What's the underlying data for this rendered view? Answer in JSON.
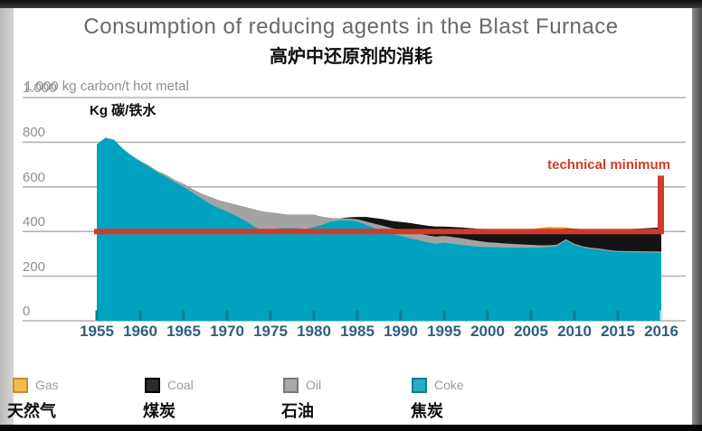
{
  "chart_data": {
    "type": "area",
    "title": "Consumption of reducing agents in the Blast Furnace",
    "subtitle_zh": "高炉中还原剂的消耗",
    "y_unit_en": "1.000 kg carbon/t hot metal",
    "y_unit_zh": "Kg 碳/铁水",
    "ylim": [
      0,
      1000
    ],
    "grid": true,
    "y_ticks": [
      1000,
      800,
      600,
      400,
      200,
      0
    ],
    "y_tick_labels": [
      "1.000",
      "800",
      "600",
      "400",
      "200",
      "0"
    ],
    "x_tick_years": [
      1955,
      1960,
      1965,
      1970,
      1975,
      1980,
      1985,
      1990,
      1995,
      2000,
      2005,
      2010,
      2015,
      2016
    ],
    "x_tick_labels": [
      "1955",
      "1960",
      "1965",
      "1970",
      "1975",
      "1980",
      "1985",
      "1990",
      "1995",
      "2000",
      "2005",
      "2010",
      "2015",
      "2016"
    ],
    "years": [
      1955,
      1956,
      1957,
      1958,
      1959,
      1960,
      1961,
      1962,
      1963,
      1964,
      1965,
      1966,
      1967,
      1968,
      1969,
      1970,
      1971,
      1972,
      1973,
      1974,
      1975,
      1976,
      1977,
      1978,
      1979,
      1980,
      1981,
      1982,
      1983,
      1984,
      1985,
      1986,
      1987,
      1988,
      1989,
      1990,
      1991,
      1992,
      1993,
      1994,
      1995,
      1996,
      1997,
      1998,
      1999,
      2000,
      2001,
      2002,
      2003,
      2004,
      2005,
      2006,
      2007,
      2008,
      2009,
      2010,
      2011,
      2012,
      2013,
      2014,
      2015,
      2016
    ],
    "series": [
      {
        "key": "coke",
        "name": "Coke",
        "name_zh": "焦炭",
        "color": "#00a3bf",
        "values": [
          790,
          820,
          810,
          770,
          740,
          715,
          690,
          665,
          645,
          620,
          600,
          575,
          550,
          525,
          505,
          490,
          470,
          450,
          425,
          405,
          405,
          415,
          415,
          415,
          410,
          420,
          430,
          445,
          450,
          450,
          445,
          430,
          415,
          400,
          390,
          380,
          370,
          362,
          352,
          345,
          350,
          345,
          340,
          335,
          332,
          330,
          330,
          328,
          328,
          328,
          328,
          328,
          330,
          335,
          360,
          340,
          328,
          322,
          318,
          312,
          308,
          305
        ]
      },
      {
        "key": "oil",
        "name": "Oil",
        "name_zh": "石油",
        "color": "#a3a3a3",
        "values": [
          0,
          0,
          0,
          0,
          0,
          0,
          5,
          5,
          8,
          10,
          12,
          15,
          20,
          30,
          35,
          40,
          50,
          60,
          75,
          85,
          80,
          65,
          60,
          60,
          65,
          55,
          35,
          15,
          8,
          8,
          10,
          15,
          20,
          25,
          25,
          28,
          30,
          30,
          32,
          32,
          30,
          30,
          30,
          28,
          25,
          22,
          20,
          18,
          16,
          14,
          12,
          10,
          8,
          6,
          5,
          5,
          5,
          5,
          5,
          5,
          5,
          5
        ]
      },
      {
        "key": "coal",
        "name": "Coal",
        "name_zh": "煤炭",
        "color": "#141414",
        "values": [
          0,
          0,
          0,
          0,
          0,
          0,
          0,
          0,
          0,
          0,
          0,
          0,
          0,
          0,
          0,
          0,
          0,
          0,
          0,
          0,
          0,
          0,
          0,
          0,
          0,
          0,
          0,
          0,
          0,
          5,
          10,
          20,
          25,
          30,
          32,
          35,
          38,
          40,
          42,
          45,
          42,
          45,
          48,
          52,
          55,
          58,
          60,
          64,
          66,
          68,
          70,
          70,
          68,
          66,
          48,
          68,
          76,
          82,
          86,
          90,
          95,
          108
        ]
      },
      {
        "key": "gas",
        "name": "Gas",
        "name_zh": "天然气",
        "color": "#ef9b20",
        "values": [
          0,
          0,
          0,
          0,
          0,
          0,
          0,
          0,
          0,
          0,
          0,
          0,
          0,
          0,
          0,
          0,
          0,
          0,
          0,
          0,
          0,
          0,
          0,
          0,
          0,
          0,
          0,
          0,
          0,
          0,
          0,
          0,
          0,
          0,
          0,
          0,
          0,
          0,
          0,
          0,
          0,
          0,
          0,
          0,
          0,
          0,
          0,
          0,
          0,
          0,
          0,
          8,
          14,
          12,
          6,
          0,
          0,
          0,
          0,
          0,
          0,
          0
        ]
      }
    ],
    "technical_minimum": 400,
    "technical_minimum_label": "technical minimum",
    "technical_minimum_color": "#cf3b28",
    "spike": {
      "year": 2016,
      "top": 650
    },
    "legend": [
      {
        "label": "Gas",
        "label_zh": "天然气",
        "fill": "#eebd4e",
        "border": "#cf8a2d"
      },
      {
        "label": "Coal",
        "label_zh": "煤炭",
        "fill": "#2a2a2a",
        "border": "#000000"
      },
      {
        "label": "Oil",
        "label_zh": "石油",
        "fill": "#a8a8a8",
        "border": "#787878"
      },
      {
        "label": "Coke",
        "label_zh": "焦炭",
        "fill": "#29abbe",
        "border": "#0d7f96"
      }
    ]
  }
}
